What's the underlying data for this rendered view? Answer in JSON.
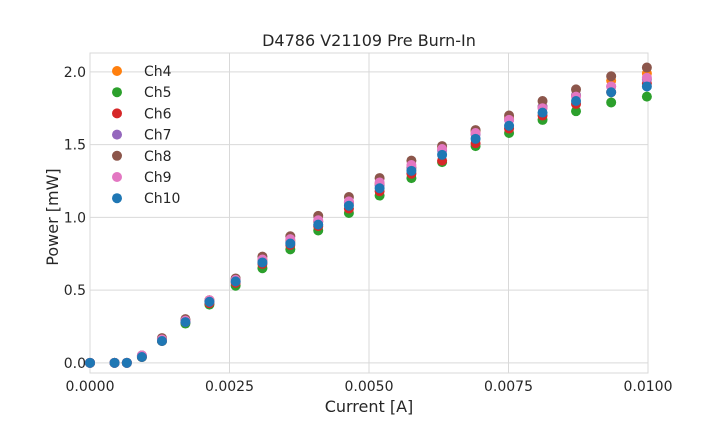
{
  "chart_data": {
    "type": "scatter",
    "title": "D4786 V21109 Pre Burn-In",
    "xlabel": "Current [A]",
    "ylabel": "Power [mW]",
    "xlim": [
      0.0,
      0.01
    ],
    "ylim": [
      -0.07,
      2.13
    ],
    "xticks": [
      0.0,
      0.0025,
      0.005,
      0.0075,
      0.01
    ],
    "xtick_labels": [
      "0.0000",
      "0.0025",
      "0.0050",
      "0.0075",
      "0.0100"
    ],
    "yticks": [
      0.0,
      0.5,
      1.0,
      1.5,
      2.0
    ],
    "ytick_labels": [
      "0.0",
      "0.5",
      "1.0",
      "1.5",
      "2.0"
    ],
    "grid": true,
    "legend_position": "top-left",
    "x": [
      0.0,
      0.00044,
      0.00066,
      0.00093,
      0.00129,
      0.00171,
      0.00214,
      0.00261,
      0.00309,
      0.00359,
      0.00409,
      0.00464,
      0.00519,
      0.00576,
      0.00631,
      0.00691,
      0.00751,
      0.00811,
      0.00871,
      0.00934,
      0.00998
    ],
    "series": [
      {
        "name": "Ch4",
        "color": "#ff7f0e",
        "values": [
          0.0,
          0.0,
          0.0,
          0.04,
          0.16,
          0.29,
          0.43,
          0.57,
          0.71,
          0.84,
          0.97,
          1.1,
          1.23,
          1.34,
          1.48,
          1.59,
          1.68,
          1.76,
          1.84,
          1.94,
          1.99
        ]
      },
      {
        "name": "Ch5",
        "color": "#2ca02c",
        "values": [
          0.0,
          0.0,
          0.0,
          0.04,
          0.15,
          0.27,
          0.4,
          0.53,
          0.65,
          0.78,
          0.91,
          1.03,
          1.15,
          1.27,
          1.38,
          1.49,
          1.58,
          1.67,
          1.73,
          1.79,
          1.83
        ]
      },
      {
        "name": "Ch6",
        "color": "#d62728",
        "values": [
          0.0,
          0.0,
          0.0,
          0.04,
          0.15,
          0.28,
          0.41,
          0.55,
          0.68,
          0.81,
          0.94,
          1.06,
          1.18,
          1.3,
          1.39,
          1.51,
          1.61,
          1.7,
          1.78,
          1.86,
          1.92
        ]
      },
      {
        "name": "Ch7",
        "color": "#9467bd",
        "values": [
          0.0,
          0.0,
          0.0,
          0.05,
          0.16,
          0.29,
          0.42,
          0.56,
          0.7,
          0.83,
          0.97,
          1.1,
          1.22,
          1.34,
          1.46,
          1.57,
          1.67,
          1.76,
          1.84,
          1.9,
          1.95
        ]
      },
      {
        "name": "Ch8",
        "color": "#8c564b",
        "values": [
          0.0,
          0.0,
          0.0,
          0.05,
          0.17,
          0.3,
          0.43,
          0.58,
          0.73,
          0.87,
          1.01,
          1.14,
          1.27,
          1.39,
          1.49,
          1.6,
          1.7,
          1.8,
          1.88,
          1.97,
          2.03
        ]
      },
      {
        "name": "Ch9",
        "color": "#e377c2",
        "values": [
          0.0,
          0.0,
          0.0,
          0.05,
          0.16,
          0.29,
          0.43,
          0.57,
          0.71,
          0.85,
          0.98,
          1.11,
          1.24,
          1.36,
          1.47,
          1.58,
          1.67,
          1.75,
          1.83,
          1.9,
          1.96
        ]
      },
      {
        "name": "Ch10",
        "color": "#1f77b4",
        "values": [
          0.0,
          0.0,
          0.0,
          0.04,
          0.15,
          0.28,
          0.42,
          0.56,
          0.69,
          0.82,
          0.95,
          1.08,
          1.2,
          1.32,
          1.43,
          1.54,
          1.63,
          1.72,
          1.8,
          1.86,
          1.9
        ]
      }
    ]
  }
}
